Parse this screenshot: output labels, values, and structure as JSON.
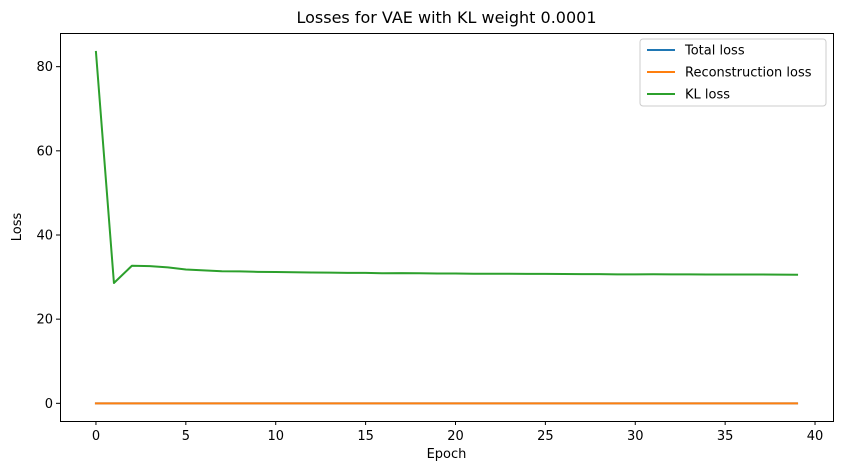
{
  "chart_data": {
    "type": "line",
    "title": "Losses for VAE with KL weight 0.0001",
    "xlabel": "Epoch",
    "ylabel": "Loss",
    "xlim": [
      -2,
      41
    ],
    "ylim": [
      -4.2,
      88
    ],
    "xticks": [
      0,
      5,
      10,
      15,
      20,
      25,
      30,
      35,
      40
    ],
    "yticks": [
      0,
      20,
      40,
      60,
      80
    ],
    "grid": false,
    "legend_position": "top-right",
    "x": [
      0,
      1,
      2,
      3,
      4,
      5,
      6,
      7,
      8,
      9,
      10,
      11,
      12,
      13,
      14,
      15,
      16,
      17,
      18,
      19,
      20,
      21,
      22,
      23,
      24,
      25,
      26,
      27,
      28,
      29,
      30,
      31,
      32,
      33,
      34,
      35,
      36,
      37,
      38,
      39
    ],
    "series": [
      {
        "name": "Total loss",
        "color": "#1f77b4",
        "values": [
          0.0,
          0.0,
          0.0,
          0.0,
          0.0,
          0.0,
          0.0,
          0.0,
          0.0,
          0.0,
          0.0,
          0.0,
          0.0,
          0.0,
          0.0,
          0.0,
          0.0,
          0.0,
          0.0,
          0.0,
          0.0,
          0.0,
          0.0,
          0.0,
          0.0,
          0.0,
          0.0,
          0.0,
          0.0,
          0.0,
          0.0,
          0.0,
          0.0,
          0.0,
          0.0,
          0.0,
          0.0,
          0.0,
          0.0,
          0.0
        ]
      },
      {
        "name": "Reconstruction loss",
        "color": "#ff7f0e",
        "values": [
          0.0,
          0.0,
          0.0,
          0.0,
          0.0,
          0.0,
          0.0,
          0.0,
          0.0,
          0.0,
          0.0,
          0.0,
          0.0,
          0.0,
          0.0,
          0.0,
          0.0,
          0.0,
          0.0,
          0.0,
          0.0,
          0.0,
          0.0,
          0.0,
          0.0,
          0.0,
          0.0,
          0.0,
          0.0,
          0.0,
          0.0,
          0.0,
          0.0,
          0.0,
          0.0,
          0.0,
          0.0,
          0.0,
          0.0,
          0.0
        ]
      },
      {
        "name": "KL loss",
        "color": "#2ca02c",
        "values": [
          83.5,
          28.6,
          32.7,
          32.6,
          32.3,
          31.8,
          31.6,
          31.4,
          31.35,
          31.25,
          31.2,
          31.15,
          31.1,
          31.05,
          31.0,
          31.0,
          30.9,
          30.95,
          30.9,
          30.85,
          30.85,
          30.8,
          30.8,
          30.78,
          30.75,
          30.75,
          30.72,
          30.7,
          30.7,
          30.65,
          30.65,
          30.68,
          30.65,
          30.65,
          30.62,
          30.6,
          30.6,
          30.6,
          30.58,
          30.55
        ]
      }
    ]
  }
}
